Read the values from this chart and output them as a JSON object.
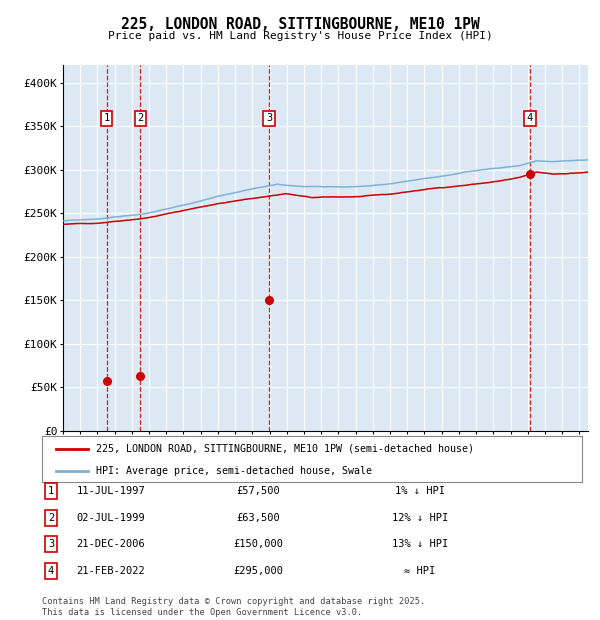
{
  "title": "225, LONDON ROAD, SITTINGBOURNE, ME10 1PW",
  "subtitle": "Price paid vs. HM Land Registry's House Price Index (HPI)",
  "plot_bg_color": "#dce9f5",
  "hpi_color": "#7bafd4",
  "price_color": "#cc0000",
  "grid_color": "#ffffff",
  "sale_points": [
    {
      "label": "1",
      "date_num": 1997.53,
      "price": 57500
    },
    {
      "label": "2",
      "date_num": 1999.5,
      "price": 63500
    },
    {
      "label": "3",
      "date_num": 2006.97,
      "price": 150000
    },
    {
      "label": "4",
      "date_num": 2022.13,
      "price": 295000
    }
  ],
  "table_rows": [
    {
      "num": "1",
      "date": "11-JUL-1997",
      "price": "£57,500",
      "hpi": "1% ↓ HPI"
    },
    {
      "num": "2",
      "date": "02-JUL-1999",
      "price": "£63,500",
      "hpi": "12% ↓ HPI"
    },
    {
      "num": "3",
      "date": "21-DEC-2006",
      "price": "£150,000",
      "hpi": "13% ↓ HPI"
    },
    {
      "num": "4",
      "date": "21-FEB-2022",
      "price": "£295,000",
      "hpi": "≈ HPI"
    }
  ],
  "legend_line1": "225, LONDON ROAD, SITTINGBOURNE, ME10 1PW (semi-detached house)",
  "legend_line2": "HPI: Average price, semi-detached house, Swale",
  "footnote": "Contains HM Land Registry data © Crown copyright and database right 2025.\nThis data is licensed under the Open Government Licence v3.0.",
  "ylim": [
    0,
    420000
  ],
  "xlim_start": 1995.0,
  "xlim_end": 2025.5,
  "yticks": [
    0,
    50000,
    100000,
    150000,
    200000,
    250000,
    300000,
    350000,
    400000
  ],
  "ytick_labels": [
    "£0",
    "£50K",
    "£100K",
    "£150K",
    "£200K",
    "£250K",
    "£300K",
    "£350K",
    "£400K"
  ]
}
